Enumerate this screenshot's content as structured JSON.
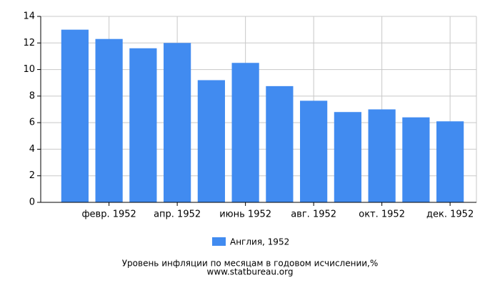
{
  "chart_data": {
    "type": "bar",
    "title": "Уровень инфляции по месяцам в годовом исчислении,%",
    "source": "www.statbureau.org",
    "categories": [
      null,
      "февр. 1952",
      null,
      "апр. 1952",
      null,
      "июнь 1952",
      null,
      "авг. 1952",
      null,
      "окт. 1952",
      null,
      "дек. 1952"
    ],
    "series": [
      {
        "name": "Англия, 1952",
        "color": "#418bf0",
        "values": [
          13.0,
          12.3,
          11.6,
          12.0,
          9.2,
          10.5,
          8.75,
          7.65,
          6.8,
          7.0,
          6.4,
          6.1
        ]
      }
    ],
    "ylim": [
      0,
      14
    ],
    "yticks": [
      0,
      2,
      4,
      6,
      8,
      10,
      12,
      14
    ],
    "grid": true
  }
}
